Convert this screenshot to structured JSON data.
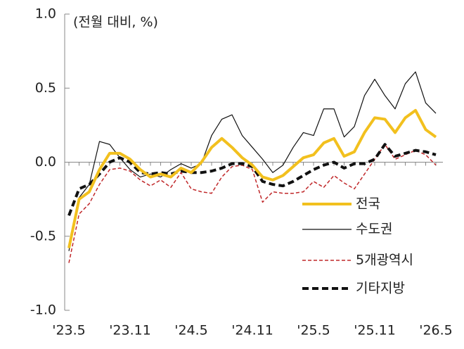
{
  "chart_data": {
    "type": "line",
    "annotation": "(전월 대비, %)",
    "categories": [
      "'23.5",
      null,
      null,
      null,
      null,
      null,
      "'23.11",
      null,
      null,
      null,
      null,
      null,
      "'24.5",
      null,
      null,
      null,
      null,
      null,
      "'24.11",
      null,
      null,
      null,
      null,
      null,
      "'25.5",
      null,
      null,
      null,
      null,
      null,
      "'25.11",
      null,
      null,
      null,
      null,
      null,
      "'26.5"
    ],
    "ylim": [
      -1.0,
      1.0
    ],
    "yticks": [
      {
        "value": 1.0,
        "label": "1.0"
      },
      {
        "value": 0.5,
        "label": "0.5"
      },
      {
        "value": 0.0,
        "label": "0.0"
      },
      {
        "value": -0.5,
        "label": "-0.5"
      },
      {
        "value": -1.0,
        "label": "-1.0"
      }
    ],
    "series": [
      {
        "name": "전국",
        "color": "#f2c01e",
        "width": 4,
        "dash": "solid",
        "values": [
          -0.58,
          -0.25,
          -0.2,
          -0.05,
          0.06,
          0.06,
          0.02,
          -0.05,
          -0.1,
          -0.08,
          -0.1,
          -0.04,
          -0.07,
          0.0,
          0.1,
          0.16,
          0.1,
          0.03,
          -0.02,
          -0.1,
          -0.12,
          -0.09,
          -0.03,
          0.03,
          0.05,
          0.13,
          0.16,
          0.04,
          0.07,
          0.2,
          0.3,
          0.29,
          0.2,
          0.3,
          0.35,
          0.22,
          0.17
        ]
      },
      {
        "name": "수도권",
        "color": "#111111",
        "width": 1.2,
        "dash": "solid",
        "values": [
          -0.6,
          -0.24,
          -0.15,
          0.14,
          0.12,
          0.03,
          -0.05,
          -0.1,
          -0.08,
          -0.1,
          -0.05,
          -0.01,
          -0.04,
          -0.01,
          0.18,
          0.29,
          0.32,
          0.18,
          0.1,
          0.02,
          -0.07,
          -0.02,
          0.1,
          0.2,
          0.18,
          0.36,
          0.36,
          0.17,
          0.24,
          0.45,
          0.56,
          0.45,
          0.36,
          0.53,
          0.61,
          0.4,
          0.33
        ]
      },
      {
        "name": "5개광역시",
        "color": "#c0282a",
        "width": 1.5,
        "dash": "dashed",
        "values": [
          -0.68,
          -0.35,
          -0.28,
          -0.15,
          -0.05,
          -0.04,
          -0.06,
          -0.12,
          -0.16,
          -0.12,
          -0.17,
          -0.07,
          -0.18,
          -0.2,
          -0.21,
          -0.1,
          -0.03,
          -0.02,
          -0.05,
          -0.27,
          -0.2,
          -0.21,
          -0.21,
          -0.2,
          -0.13,
          -0.17,
          -0.09,
          -0.14,
          -0.18,
          -0.08,
          0.02,
          0.12,
          0.02,
          0.05,
          0.08,
          0.05,
          -0.02
        ]
      },
      {
        "name": "기타지방",
        "color": "#111111",
        "width": 4,
        "dash": "dashed",
        "values": [
          -0.36,
          -0.18,
          -0.15,
          -0.08,
          0.0,
          0.03,
          0.0,
          -0.07,
          -0.08,
          -0.07,
          -0.08,
          -0.06,
          -0.07,
          -0.07,
          -0.06,
          -0.04,
          -0.01,
          -0.01,
          -0.03,
          -0.13,
          -0.15,
          -0.16,
          -0.13,
          -0.09,
          -0.05,
          -0.02,
          0.0,
          -0.04,
          -0.01,
          -0.01,
          0.02,
          0.12,
          0.04,
          0.06,
          0.08,
          0.07,
          0.05
        ]
      }
    ]
  }
}
